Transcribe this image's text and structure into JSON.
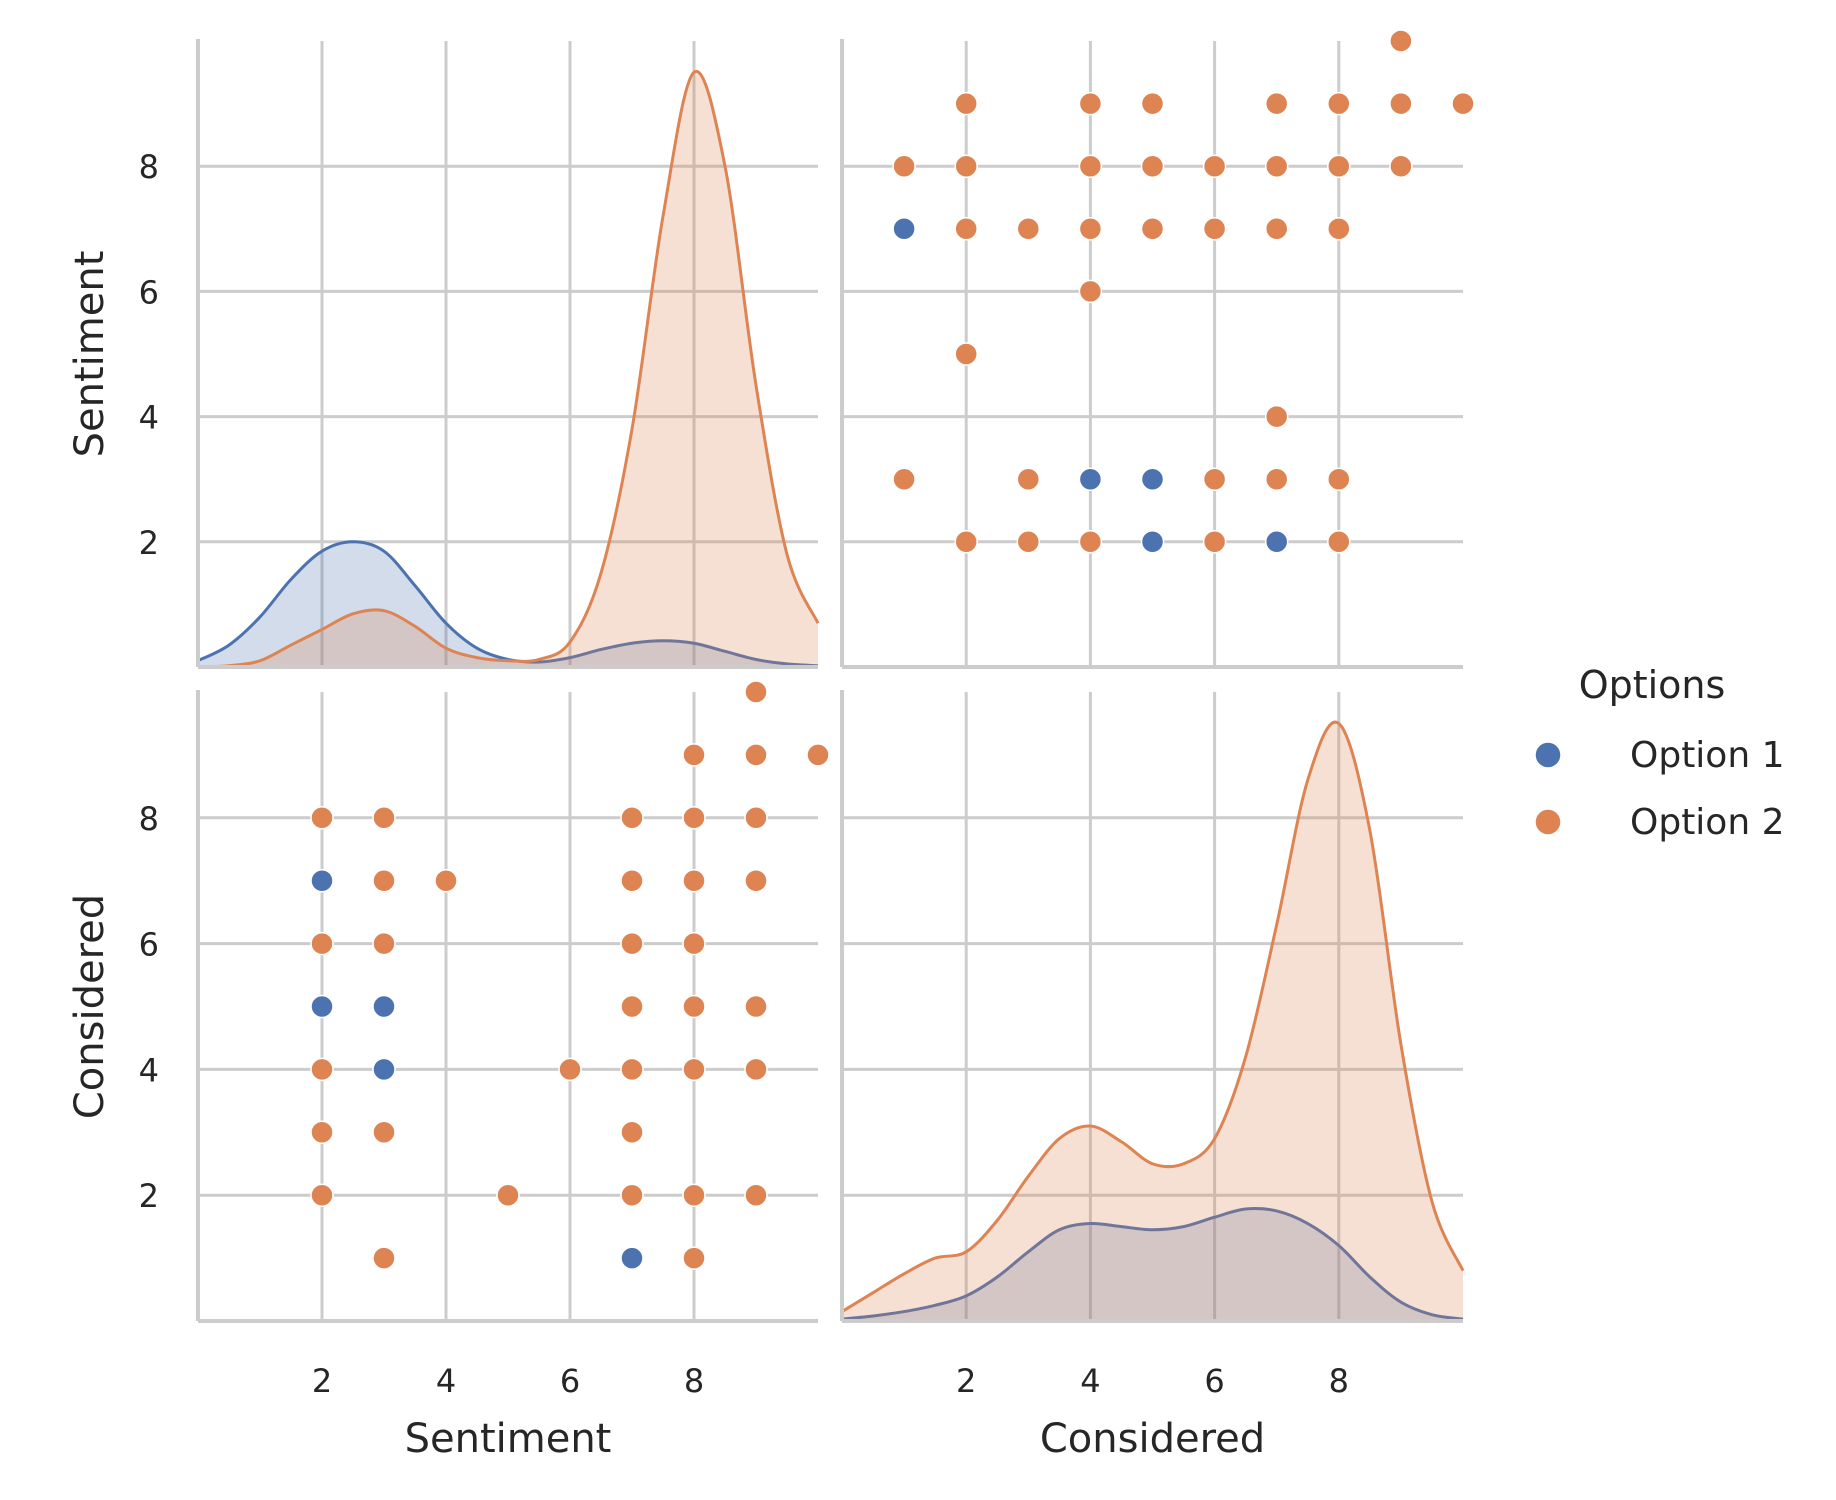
{
  "chart_data": {
    "type": "scatter",
    "subtype": "pairplot",
    "variables": [
      "Sentiment",
      "Considered"
    ],
    "xlim": [
      0,
      10
    ],
    "ylim": [
      0,
      10
    ],
    "ticks": [
      2,
      4,
      6,
      8
    ],
    "tick_labels": [
      "2",
      "4",
      "6",
      "8"
    ],
    "grid": true,
    "legend": {
      "title": "Options",
      "placement": "right",
      "entries": [
        "Option 1",
        "Option 2"
      ]
    },
    "colors": {
      "Option 1": "#4c72b0",
      "Option 2": "#dd8452",
      "grid": "#cccccc"
    },
    "points": {
      "Option 1": [
        [
          7,
          1
        ],
        [
          3,
          4
        ],
        [
          3,
          5
        ],
        [
          2,
          5
        ],
        [
          2,
          7
        ]
      ],
      "Option 2": [
        [
          10,
          9
        ],
        [
          9,
          2
        ],
        [
          9,
          4
        ],
        [
          9,
          5
        ],
        [
          9,
          7
        ],
        [
          9,
          8
        ],
        [
          9,
          9
        ],
        [
          9,
          10
        ],
        [
          8,
          1
        ],
        [
          8,
          2
        ],
        [
          8,
          4
        ],
        [
          8,
          5
        ],
        [
          8,
          6
        ],
        [
          8,
          7
        ],
        [
          8,
          8
        ],
        [
          8,
          9
        ],
        [
          7,
          2
        ],
        [
          7,
          3
        ],
        [
          7,
          4
        ],
        [
          7,
          5
        ],
        [
          7,
          6
        ],
        [
          7,
          7
        ],
        [
          7,
          8
        ],
        [
          6,
          4
        ],
        [
          5,
          2
        ],
        [
          4,
          7
        ],
        [
          3,
          1
        ],
        [
          3,
          3
        ],
        [
          3,
          6
        ],
        [
          3,
          7
        ],
        [
          3,
          8
        ],
        [
          2,
          2
        ],
        [
          2,
          3
        ],
        [
          2,
          4
        ],
        [
          2,
          6
        ],
        [
          2,
          8
        ]
      ]
    },
    "kde_x": [
      0,
      0.5,
      1,
      1.5,
      2,
      2.5,
      3,
      3.5,
      4,
      4.5,
      5,
      5.5,
      6,
      6.5,
      7,
      7.5,
      8,
      8.5,
      9,
      9.5,
      10
    ],
    "kde": {
      "Sentiment": {
        "Option 1": [
          0.1,
          0.35,
          0.8,
          1.4,
          1.85,
          2.0,
          1.85,
          1.3,
          0.7,
          0.3,
          0.12,
          0.08,
          0.15,
          0.28,
          0.38,
          0.42,
          0.38,
          0.25,
          0.12,
          0.05,
          0.02
        ],
        "Option 2": [
          0,
          0.02,
          0.1,
          0.35,
          0.6,
          0.85,
          0.9,
          0.65,
          0.3,
          0.15,
          0.1,
          0.12,
          0.4,
          1.5,
          3.8,
          7.2,
          9.5,
          8.0,
          4.5,
          1.8,
          0.7
        ]
      },
      "Considered": {
        "Option 1": [
          0.03,
          0.08,
          0.15,
          0.25,
          0.4,
          0.7,
          1.1,
          1.45,
          1.55,
          1.5,
          1.45,
          1.5,
          1.65,
          1.78,
          1.75,
          1.55,
          1.2,
          0.7,
          0.3,
          0.1,
          0.03
        ],
        "Option 2": [
          0.15,
          0.45,
          0.75,
          1.0,
          1.1,
          1.6,
          2.3,
          2.9,
          3.1,
          2.85,
          2.5,
          2.5,
          2.9,
          4.2,
          6.3,
          8.6,
          9.5,
          7.8,
          4.4,
          1.9,
          0.8
        ]
      }
    }
  }
}
